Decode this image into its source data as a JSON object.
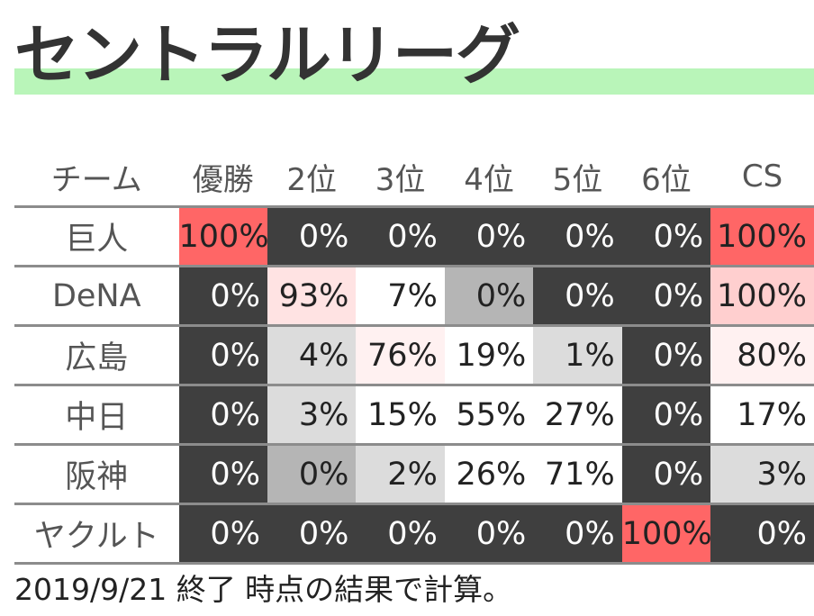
{
  "page": {
    "title": "セントラルリーグ",
    "footnote": "2019/9/21 終了 時点の結果で計算。"
  },
  "colors": {
    "title_band": "#b9f5b9",
    "cell_dark": "#3f3f3f",
    "cell_red": "#ff6666",
    "cell_pink": "#ffcfcf",
    "cell_lightpink": "#ffe3e3",
    "cell_palepink": "#fff1f1",
    "cell_gray": "#b5b5b5",
    "cell_lightgray": "#dcdcdc",
    "cell_white": "#ffffff",
    "text_dark_cell": "#ffffff",
    "text_normal": "#222222"
  },
  "chart_data": {
    "type": "table",
    "columns": [
      "チーム",
      "優勝",
      "2位",
      "3位",
      "4位",
      "5位",
      "6位",
      "CS"
    ],
    "rows": [
      {
        "team": "巨人",
        "values": [
          "100%",
          "0%",
          "0%",
          "0%",
          "0%",
          "0%",
          "100%"
        ],
        "shades": [
          "red",
          "dark",
          "dark",
          "dark",
          "dark",
          "dark",
          "red"
        ]
      },
      {
        "team": "DeNA",
        "values": [
          "0%",
          "93%",
          "7%",
          "0%",
          "0%",
          "0%",
          "100%"
        ],
        "shades": [
          "dark",
          "lightpink",
          "white",
          "gray",
          "dark",
          "dark",
          "pink"
        ]
      },
      {
        "team": "広島",
        "values": [
          "0%",
          "4%",
          "76%",
          "19%",
          "1%",
          "0%",
          "80%"
        ],
        "shades": [
          "dark",
          "lightgray",
          "palepink",
          "white",
          "lightgray",
          "dark",
          "palepink"
        ]
      },
      {
        "team": "中日",
        "values": [
          "0%",
          "3%",
          "15%",
          "55%",
          "27%",
          "0%",
          "17%"
        ],
        "shades": [
          "dark",
          "lightgray",
          "white",
          "white",
          "white",
          "dark",
          "white"
        ]
      },
      {
        "team": "阪神",
        "values": [
          "0%",
          "0%",
          "2%",
          "26%",
          "71%",
          "0%",
          "3%"
        ],
        "shades": [
          "dark",
          "gray",
          "lightgray",
          "white",
          "white",
          "dark",
          "lightgray"
        ]
      },
      {
        "team": "ヤクルト",
        "values": [
          "0%",
          "0%",
          "0%",
          "0%",
          "0%",
          "100%",
          "0%"
        ],
        "shades": [
          "dark",
          "dark",
          "dark",
          "dark",
          "dark",
          "red",
          "dark"
        ]
      }
    ]
  }
}
